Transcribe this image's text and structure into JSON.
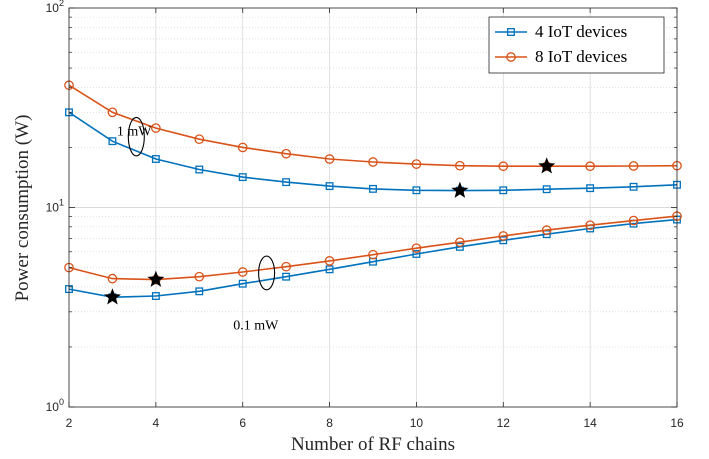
{
  "chart_data": {
    "type": "line",
    "xlabel": "Number of RF chains",
    "ylabel": "Power consumption (W)",
    "x_ticks": [
      "2",
      "4",
      "6",
      "8",
      "10",
      "12",
      "14",
      "16"
    ],
    "y_ticks": [
      {
        "base": "10",
        "exp": "0",
        "value": 1
      },
      {
        "base": "10",
        "exp": "1",
        "value": 10
      },
      {
        "base": "10",
        "exp": "2",
        "value": 100
      }
    ],
    "xlim": [
      2,
      16
    ],
    "ylim": [
      1,
      100
    ],
    "yscale": "log",
    "grid": true,
    "legend_position": "top-right",
    "x": [
      2,
      3,
      4,
      5,
      6,
      7,
      8,
      9,
      10,
      11,
      12,
      13,
      14,
      15,
      16
    ],
    "series": [
      {
        "name": "4 IoT devices",
        "group": "1 mW",
        "color": "#0072BD",
        "marker": "square",
        "values": [
          30,
          21.5,
          17.5,
          15.5,
          14.2,
          13.4,
          12.8,
          12.4,
          12.2,
          12.15,
          12.2,
          12.35,
          12.5,
          12.7,
          13.0
        ]
      },
      {
        "name": "8 IoT devices",
        "group": "1 mW",
        "color": "#D95319",
        "marker": "circle",
        "values": [
          41,
          30,
          25,
          22,
          20,
          18.6,
          17.5,
          16.9,
          16.5,
          16.2,
          16.1,
          16.1,
          16.1,
          16.15,
          16.2
        ]
      },
      {
        "name": "4 IoT devices",
        "group": "0.1 mW",
        "color": "#0072BD",
        "marker": "square",
        "values": [
          3.9,
          3.55,
          3.6,
          3.8,
          4.15,
          4.5,
          4.9,
          5.35,
          5.85,
          6.35,
          6.85,
          7.35,
          7.85,
          8.3,
          8.7
        ]
      },
      {
        "name": "8 IoT devices",
        "group": "0.1 mW",
        "color": "#D95319",
        "marker": "circle",
        "values": [
          5.0,
          4.4,
          4.35,
          4.5,
          4.75,
          5.05,
          5.4,
          5.8,
          6.25,
          6.7,
          7.2,
          7.7,
          8.15,
          8.6,
          9.05
        ]
      }
    ],
    "optimal_points": [
      {
        "x": 11,
        "y": 12.15
      },
      {
        "x": 13,
        "y": 16.1
      },
      {
        "x": 3,
        "y": 3.55
      },
      {
        "x": 4,
        "y": 4.35
      }
    ],
    "annotations": [
      {
        "text": "1 mW",
        "x": 3.5,
        "y": 23,
        "ellipse_x": 3.55,
        "ellipse_ymin": 19.0,
        "ellipse_ymax": 27.0
      },
      {
        "text": "0.1 mW",
        "x": 6.3,
        "y": 2.45,
        "ellipse_x": 6.55,
        "ellipse_ymin": 4.05,
        "ellipse_ymax": 5.45
      }
    ]
  }
}
